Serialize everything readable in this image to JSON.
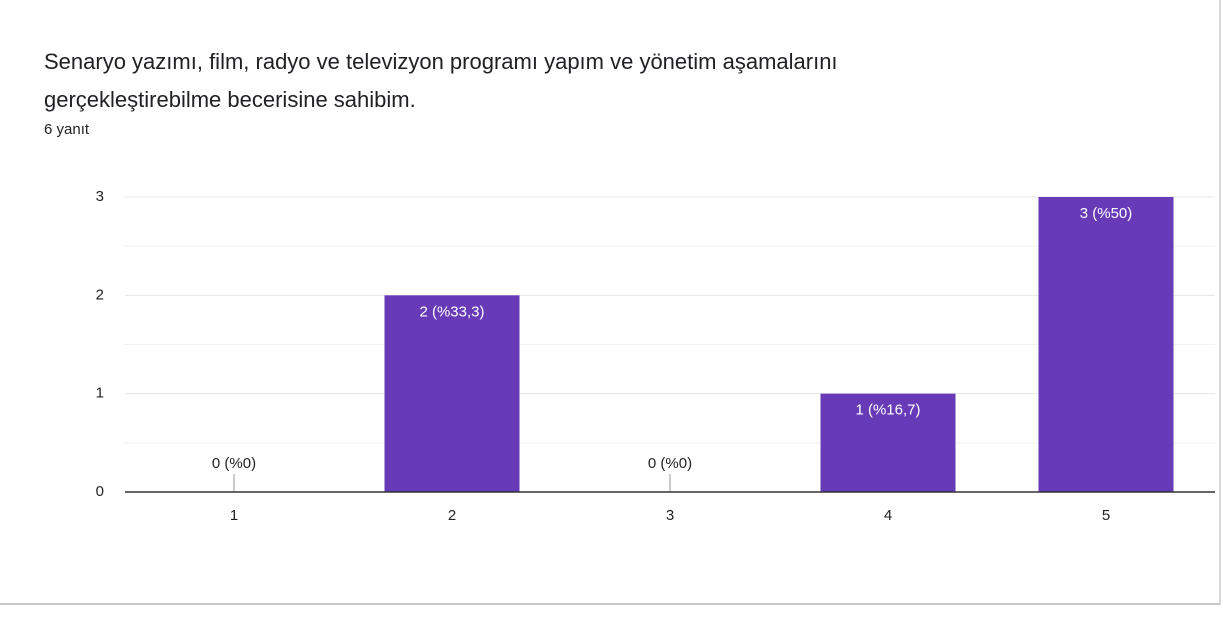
{
  "chart_data": {
    "type": "bar",
    "title": "Senaryo yazımı, film, radyo ve televizyon programı yapım ve yönetim aşamalarını gerçekleştirebilme becerisine sahibim.",
    "subtitle": "6 yanıt",
    "categories": [
      "1",
      "2",
      "3",
      "4",
      "5"
    ],
    "values": [
      0,
      2,
      0,
      1,
      3
    ],
    "value_labels": [
      "0 (%0)",
      "2 (%33,3)",
      "0 (%0)",
      "1 (%16,7)",
      "3 (%50)"
    ],
    "color": "#673ab7",
    "ylim": [
      0,
      3
    ],
    "yticks": [
      0,
      1,
      2,
      3
    ],
    "yminor": [
      0.5,
      1.5,
      2.5
    ],
    "grid": true
  }
}
